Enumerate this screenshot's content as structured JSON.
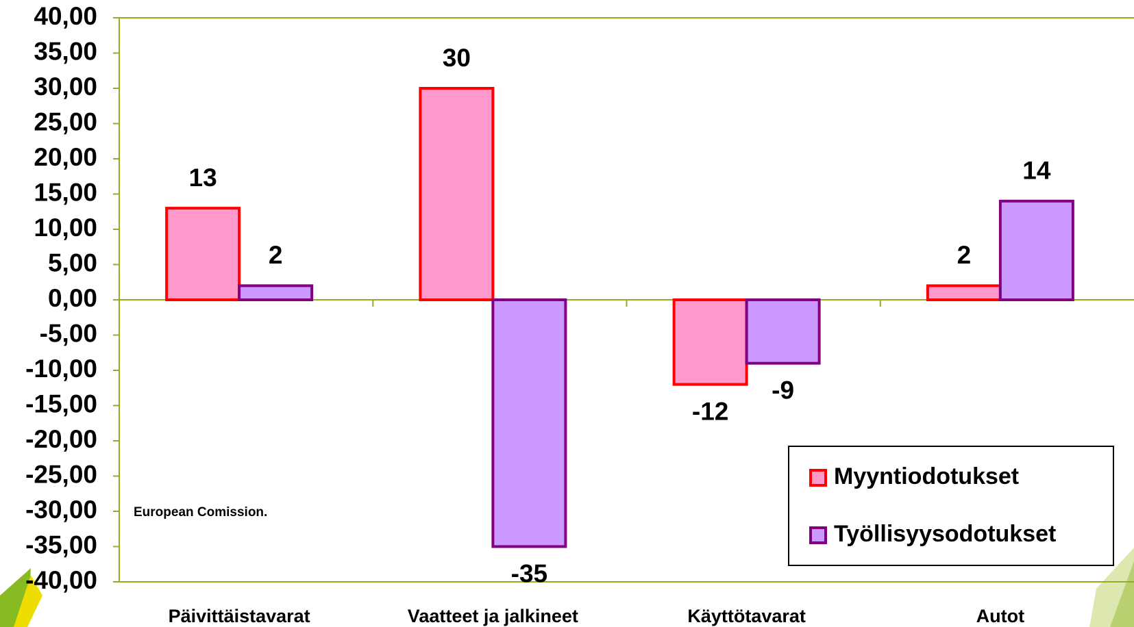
{
  "chart_data": {
    "type": "bar",
    "categories": [
      "Päivittäistavarat",
      "Vaatteet ja jalkineet",
      "Käyttötavarat",
      "Autot"
    ],
    "series": [
      {
        "name": "Myyntiodotukset",
        "color": "#ff99cc",
        "edgecolor": "#ff0000",
        "values": [
          13,
          30,
          -12,
          2
        ]
      },
      {
        "name": "Työllisyysodotukset",
        "color": "#cc99ff",
        "edgecolor": "#800080",
        "values": [
          2,
          -35,
          -9,
          14
        ]
      }
    ],
    "ylim": [
      -40,
      40
    ],
    "yticks": [
      {
        "value": -40,
        "label": "-40,00"
      },
      {
        "value": -35,
        "label": "-35,00"
      },
      {
        "value": -30,
        "label": "-30,00"
      },
      {
        "value": -25,
        "label": "-25,00"
      },
      {
        "value": -20,
        "label": "-20,00"
      },
      {
        "value": -15,
        "label": "-15,00"
      },
      {
        "value": -10,
        "label": "-10,00"
      },
      {
        "value": -5,
        "label": "-5,00"
      },
      {
        "value": 0,
        "label": "0,00"
      },
      {
        "value": 5,
        "label": "5,00"
      },
      {
        "value": 10,
        "label": "10,00"
      },
      {
        "value": 15,
        "label": "15,00"
      },
      {
        "value": 20,
        "label": "20,00"
      },
      {
        "value": 25,
        "label": "25,00"
      },
      {
        "value": 30,
        "label": "30,00"
      },
      {
        "value": 35,
        "label": "35,00"
      },
      {
        "value": 40,
        "label": "40,00"
      }
    ],
    "grid": false,
    "legend": "lower right",
    "axis_color": "#99aa22",
    "annotations": [
      "European Comission."
    ]
  }
}
